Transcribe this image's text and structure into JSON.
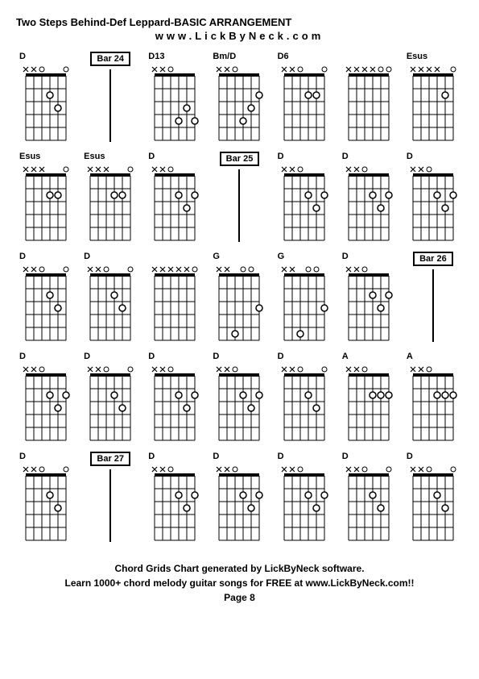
{
  "title": "Two Steps Behind-Def Leppard-BASIC ARRANGEMENT",
  "subtitle": "www.LickByNeck.com",
  "footer_line1": "Chord Grids Chart generated by LickByNeck software.",
  "footer_line2": "Learn 1000+ chord melody guitar songs for FREE at www.LickByNeck.com!!",
  "page": "Page 8",
  "colors": {
    "bg": "#ffffff",
    "line": "#000000",
    "text": "#000000"
  },
  "diagram_style": {
    "strings": 6,
    "frets": 5,
    "width": 62,
    "height": 90,
    "nut_height": 4
  },
  "cells": [
    {
      "type": "chord",
      "label": "D",
      "mutes": [
        0,
        1
      ],
      "opens": [
        2,
        5
      ],
      "dots": [
        [
          3,
          2
        ],
        [
          4,
          3
        ]
      ]
    },
    {
      "type": "bar",
      "label": "Bar 24"
    },
    {
      "type": "chord",
      "label": "D13",
      "mutes": [
        0,
        1
      ],
      "opens": [
        2
      ],
      "dots": [
        [
          3,
          4
        ],
        [
          4,
          3
        ],
        [
          5,
          4
        ]
      ]
    },
    {
      "type": "chord",
      "label": "Bm/D",
      "mutes": [
        0,
        1
      ],
      "opens": [
        2
      ],
      "dots": [
        [
          3,
          4
        ],
        [
          4,
          3
        ],
        [
          5,
          2
        ]
      ]
    },
    {
      "type": "chord",
      "label": "D6",
      "mutes": [
        0,
        1
      ],
      "opens": [
        2,
        5
      ],
      "dots": [
        [
          3,
          2
        ],
        [
          4,
          2
        ]
      ]
    },
    {
      "type": "chord",
      "label": "",
      "mutes": [
        0,
        1,
        2,
        3
      ],
      "opens": [
        4,
        5
      ],
      "dots": []
    },
    {
      "type": "chord",
      "label": "Esus",
      "mutes": [
        0,
        1,
        2,
        3
      ],
      "opens": [
        5
      ],
      "dots": [
        [
          4,
          2
        ]
      ]
    },
    {
      "type": "chord",
      "label": "Esus",
      "mutes": [
        0,
        1,
        2
      ],
      "opens": [
        5
      ],
      "dots": [
        [
          3,
          2
        ],
        [
          4,
          2
        ]
      ]
    },
    {
      "type": "chord",
      "label": "Esus",
      "mutes": [
        0,
        1,
        2
      ],
      "opens": [
        5
      ],
      "dots": [
        [
          3,
          2
        ],
        [
          4,
          2
        ]
      ]
    },
    {
      "type": "chord",
      "label": "D",
      "mutes": [
        0,
        1
      ],
      "opens": [
        2
      ],
      "dots": [
        [
          3,
          2
        ],
        [
          4,
          3
        ],
        [
          5,
          2
        ]
      ]
    },
    {
      "type": "bar",
      "label": "Bar 25"
    },
    {
      "type": "chord",
      "label": "D",
      "mutes": [
        0,
        1
      ],
      "opens": [
        2
      ],
      "dots": [
        [
          3,
          2
        ],
        [
          4,
          3
        ],
        [
          5,
          2
        ]
      ]
    },
    {
      "type": "chord",
      "label": "D",
      "mutes": [
        0,
        1
      ],
      "opens": [
        2
      ],
      "dots": [
        [
          3,
          2
        ],
        [
          4,
          3
        ],
        [
          5,
          2
        ]
      ]
    },
    {
      "type": "chord",
      "label": "D",
      "mutes": [
        0,
        1
      ],
      "opens": [
        2
      ],
      "dots": [
        [
          3,
          2
        ],
        [
          4,
          3
        ],
        [
          5,
          2
        ]
      ]
    },
    {
      "type": "chord",
      "label": "D",
      "mutes": [
        0,
        1
      ],
      "opens": [
        2,
        5
      ],
      "dots": [
        [
          3,
          2
        ],
        [
          4,
          3
        ]
      ]
    },
    {
      "type": "chord",
      "label": "D",
      "mutes": [
        0,
        1
      ],
      "opens": [
        2,
        5
      ],
      "dots": [
        [
          3,
          2
        ],
        [
          4,
          3
        ]
      ]
    },
    {
      "type": "chord",
      "label": "",
      "mutes": [
        0,
        1,
        2,
        3,
        4
      ],
      "opens": [
        5
      ],
      "dots": []
    },
    {
      "type": "chord",
      "label": "G",
      "mutes": [
        0,
        1
      ],
      "opens": [
        3,
        4
      ],
      "dots": [
        [
          2,
          5
        ],
        [
          5,
          3
        ]
      ]
    },
    {
      "type": "chord",
      "label": "G",
      "mutes": [
        0,
        1
      ],
      "opens": [
        3,
        4
      ],
      "dots": [
        [
          2,
          5
        ],
        [
          5,
          3
        ]
      ]
    },
    {
      "type": "chord",
      "label": "D",
      "mutes": [
        0,
        1
      ],
      "opens": [
        2
      ],
      "dots": [
        [
          3,
          2
        ],
        [
          4,
          3
        ],
        [
          5,
          2
        ]
      ]
    },
    {
      "type": "bar",
      "label": "Bar 26"
    },
    {
      "type": "chord",
      "label": "D",
      "mutes": [
        0,
        1
      ],
      "opens": [
        2
      ],
      "dots": [
        [
          3,
          2
        ],
        [
          4,
          3
        ],
        [
          5,
          2
        ]
      ]
    },
    {
      "type": "chord",
      "label": "D",
      "mutes": [
        0,
        1
      ],
      "opens": [
        2,
        5
      ],
      "dots": [
        [
          3,
          2
        ],
        [
          4,
          3
        ]
      ]
    },
    {
      "type": "chord",
      "label": "D",
      "mutes": [
        0,
        1
      ],
      "opens": [
        2
      ],
      "dots": [
        [
          3,
          2
        ],
        [
          4,
          3
        ],
        [
          5,
          2
        ]
      ]
    },
    {
      "type": "chord",
      "label": "D",
      "mutes": [
        0,
        1
      ],
      "opens": [
        2
      ],
      "dots": [
        [
          3,
          2
        ],
        [
          4,
          3
        ],
        [
          5,
          2
        ]
      ]
    },
    {
      "type": "chord",
      "label": "D",
      "mutes": [
        0,
        1
      ],
      "opens": [
        2,
        5
      ],
      "dots": [
        [
          3,
          2
        ],
        [
          4,
          3
        ]
      ]
    },
    {
      "type": "chord",
      "label": "A",
      "mutes": [
        0,
        1
      ],
      "opens": [
        2
      ],
      "dots": [
        [
          3,
          2
        ],
        [
          4,
          2
        ],
        [
          5,
          2
        ]
      ]
    },
    {
      "type": "chord",
      "label": "A",
      "mutes": [
        0,
        1
      ],
      "opens": [
        2
      ],
      "dots": [
        [
          3,
          2
        ],
        [
          4,
          2
        ],
        [
          5,
          2
        ]
      ]
    },
    {
      "type": "chord",
      "label": "D",
      "mutes": [
        0,
        1
      ],
      "opens": [
        2,
        5
      ],
      "dots": [
        [
          3,
          2
        ],
        [
          4,
          3
        ]
      ]
    },
    {
      "type": "bar",
      "label": "Bar 27"
    },
    {
      "type": "chord",
      "label": "D",
      "mutes": [
        0,
        1
      ],
      "opens": [
        2
      ],
      "dots": [
        [
          3,
          2
        ],
        [
          4,
          3
        ],
        [
          5,
          2
        ]
      ]
    },
    {
      "type": "chord",
      "label": "D",
      "mutes": [
        0,
        1
      ],
      "opens": [
        2
      ],
      "dots": [
        [
          3,
          2
        ],
        [
          4,
          3
        ],
        [
          5,
          2
        ]
      ]
    },
    {
      "type": "chord",
      "label": "D",
      "mutes": [
        0,
        1
      ],
      "opens": [
        2
      ],
      "dots": [
        [
          3,
          2
        ],
        [
          4,
          3
        ],
        [
          5,
          2
        ]
      ]
    },
    {
      "type": "chord",
      "label": "D",
      "mutes": [
        0,
        1
      ],
      "opens": [
        2,
        5
      ],
      "dots": [
        [
          3,
          2
        ],
        [
          4,
          3
        ]
      ]
    },
    {
      "type": "chord",
      "label": "D",
      "mutes": [
        0,
        1
      ],
      "opens": [
        2,
        5
      ],
      "dots": [
        [
          3,
          2
        ],
        [
          4,
          3
        ]
      ]
    }
  ]
}
